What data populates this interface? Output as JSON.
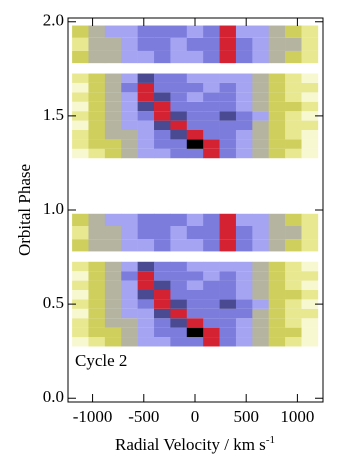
{
  "chart_data": {
    "type": "heatmap",
    "xlabel": "Radial Velocity / km s",
    "xlabel_sup": "-1",
    "ylabel": "Orbital Phase",
    "annotation": "Cycle 2",
    "xlim": [
      -1240,
      1250
    ],
    "ylim": [
      -0.02,
      2.02
    ],
    "xticks": [
      -1000,
      -500,
      0,
      500,
      1000
    ],
    "yticks": [
      {
        "value": 0,
        "label": "0.0"
      },
      {
        "value": 0.5,
        "label": "0.5"
      },
      {
        "value": 1,
        "label": "1.0"
      },
      {
        "value": 1.5,
        "label": "1.5"
      },
      {
        "value": 2,
        "label": "2.0"
      }
    ],
    "x_edges": [
      -1200,
      -1040,
      -880,
      -720,
      -560,
      -400,
      -240,
      -80,
      80,
      240,
      400,
      560,
      720,
      880,
      1040,
      1200
    ],
    "colorscale": [
      "#ffffff",
      "#f7f7d0",
      "#e8e890",
      "#cfcf5e",
      "#b4b4a0",
      "#a4a4f2",
      "#7c7cdc",
      "#4a4a92",
      "#d42232",
      "#000000"
    ],
    "rows": [
      {
        "phase": [
          0.275,
          0.325
        ],
        "values": [
          1,
          2,
          3,
          4,
          5,
          5,
          6,
          6,
          8,
          6,
          5,
          4,
          3,
          2,
          1
        ]
      },
      {
        "phase": [
          0.325,
          0.375
        ],
        "values": [
          2,
          3,
          3,
          4,
          5,
          6,
          6,
          9,
          8,
          6,
          5,
          4,
          3,
          3,
          1
        ]
      },
      {
        "phase": [
          0.375,
          0.425
        ],
        "values": [
          2,
          3,
          4,
          4,
          5,
          6,
          7,
          8,
          6,
          6,
          5,
          4,
          3,
          2,
          1
        ]
      },
      {
        "phase": [
          0.425,
          0.475
        ],
        "values": [
          1,
          3,
          4,
          5,
          5,
          7,
          8,
          6,
          6,
          6,
          6,
          4,
          3,
          2,
          2
        ]
      },
      {
        "phase": [
          0.475,
          0.525
        ],
        "values": [
          2,
          3,
          4,
          5,
          6,
          8,
          7,
          6,
          6,
          7,
          6,
          5,
          3,
          2,
          1
        ]
      },
      {
        "phase": [
          0.525,
          0.575
        ],
        "values": [
          1,
          3,
          4,
          5,
          7,
          8,
          6,
          6,
          6,
          6,
          5,
          4,
          3,
          3,
          2
        ]
      },
      {
        "phase": [
          0.575,
          0.625
        ],
        "values": [
          2,
          3,
          4,
          5,
          8,
          7,
          6,
          5,
          6,
          6,
          5,
          4,
          3,
          2,
          1
        ]
      },
      {
        "phase": [
          0.625,
          0.675
        ],
        "values": [
          1,
          3,
          4,
          6,
          8,
          6,
          6,
          6,
          5,
          6,
          5,
          4,
          3,
          2,
          2
        ]
      },
      {
        "phase": [
          0.675,
          0.725
        ],
        "values": [
          2,
          3,
          4,
          5,
          7,
          6,
          6,
          5,
          5,
          5,
          5,
          4,
          3,
          2,
          1
        ]
      },
      {
        "phase": [
          0.78,
          0.845
        ],
        "values": [
          3,
          4,
          4,
          5,
          5,
          6,
          5,
          5,
          6,
          8,
          6,
          5,
          4,
          3,
          2
        ]
      },
      {
        "phase": [
          0.845,
          0.915
        ],
        "values": [
          2,
          4,
          4,
          5,
          6,
          6,
          5,
          6,
          6,
          8,
          6,
          5,
          4,
          4,
          2
        ]
      },
      {
        "phase": [
          0.915,
          0.98
        ],
        "values": [
          3,
          4,
          5,
          5,
          6,
          6,
          6,
          5,
          6,
          8,
          5,
          5,
          4,
          3,
          2
        ]
      },
      {
        "phase": [
          1.275,
          1.325
        ],
        "values": [
          1,
          2,
          3,
          4,
          5,
          5,
          6,
          6,
          8,
          6,
          5,
          4,
          3,
          2,
          1
        ]
      },
      {
        "phase": [
          1.325,
          1.375
        ],
        "values": [
          2,
          3,
          3,
          4,
          5,
          6,
          6,
          9,
          8,
          6,
          5,
          4,
          3,
          3,
          1
        ]
      },
      {
        "phase": [
          1.375,
          1.425
        ],
        "values": [
          2,
          3,
          4,
          4,
          5,
          6,
          7,
          8,
          6,
          6,
          5,
          4,
          3,
          2,
          1
        ]
      },
      {
        "phase": [
          1.425,
          1.475
        ],
        "values": [
          1,
          3,
          4,
          5,
          5,
          7,
          8,
          6,
          6,
          6,
          6,
          4,
          3,
          2,
          2
        ]
      },
      {
        "phase": [
          1.475,
          1.525
        ],
        "values": [
          2,
          3,
          4,
          5,
          6,
          8,
          7,
          6,
          6,
          7,
          6,
          5,
          3,
          2,
          1
        ]
      },
      {
        "phase": [
          1.525,
          1.575
        ],
        "values": [
          1,
          3,
          4,
          5,
          7,
          8,
          6,
          6,
          6,
          6,
          5,
          4,
          3,
          3,
          2
        ]
      },
      {
        "phase": [
          1.575,
          1.625
        ],
        "values": [
          2,
          3,
          4,
          5,
          8,
          7,
          6,
          5,
          6,
          6,
          5,
          4,
          3,
          2,
          1
        ]
      },
      {
        "phase": [
          1.625,
          1.675
        ],
        "values": [
          1,
          3,
          4,
          6,
          8,
          6,
          6,
          6,
          5,
          6,
          5,
          4,
          3,
          2,
          2
        ]
      },
      {
        "phase": [
          1.675,
          1.725
        ],
        "values": [
          2,
          3,
          4,
          5,
          7,
          6,
          6,
          5,
          5,
          5,
          5,
          4,
          3,
          2,
          1
        ]
      },
      {
        "phase": [
          1.78,
          1.845
        ],
        "values": [
          3,
          4,
          4,
          5,
          5,
          6,
          5,
          5,
          6,
          8,
          6,
          5,
          4,
          3,
          2
        ]
      },
      {
        "phase": [
          1.845,
          1.915
        ],
        "values": [
          2,
          4,
          4,
          5,
          6,
          6,
          5,
          6,
          6,
          8,
          6,
          5,
          4,
          4,
          2
        ]
      },
      {
        "phase": [
          1.915,
          1.98
        ],
        "values": [
          3,
          4,
          5,
          5,
          6,
          6,
          6,
          5,
          6,
          8,
          5,
          5,
          4,
          3,
          2
        ]
      }
    ]
  }
}
